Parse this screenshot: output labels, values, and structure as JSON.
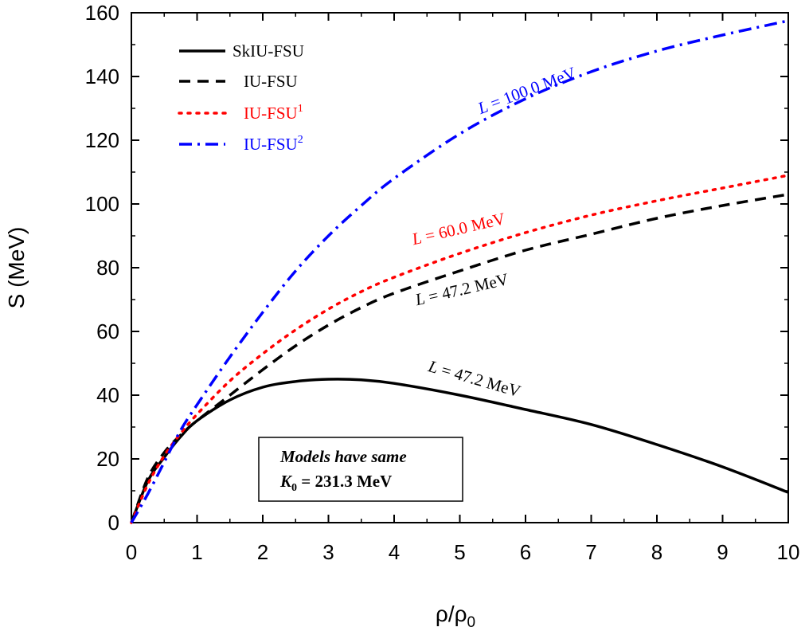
{
  "chart_data": {
    "type": "line",
    "xlabel": "ρ/ρ",
    "xlabel_sub": "0",
    "ylabel": "S (MeV)",
    "xlim": [
      0,
      10
    ],
    "ylim": [
      0,
      160
    ],
    "xticks": [
      0,
      1,
      2,
      3,
      4,
      5,
      6,
      7,
      8,
      9,
      10
    ],
    "yticks": [
      0,
      20,
      40,
      60,
      80,
      100,
      120,
      140,
      160
    ],
    "grid": false,
    "legend_position": "top-left",
    "series": [
      {
        "name": "SkIU-FSU",
        "name_sup": "",
        "style": "solid",
        "color": "#000000",
        "x": [
          0,
          0.25,
          0.5,
          0.75,
          1,
          1.5,
          2,
          2.5,
          3,
          3.5,
          4,
          5,
          6,
          7,
          8,
          9,
          10
        ],
        "y": [
          0,
          13,
          20.5,
          27,
          32,
          38.5,
          42.5,
          44.3,
          45,
          44.8,
          43.7,
          40,
          35.5,
          30.8,
          24.5,
          17.5,
          9.5
        ]
      },
      {
        "name": "IU-FSU",
        "name_sup": "",
        "style": "dashed",
        "color": "#000000",
        "x": [
          0,
          0.25,
          0.5,
          0.75,
          1,
          1.5,
          2,
          2.5,
          3,
          3.5,
          4,
          5,
          6,
          7,
          8,
          9,
          10
        ],
        "y": [
          0,
          14,
          22,
          27.5,
          32,
          40,
          48,
          55.5,
          62,
          67.5,
          72,
          79,
          85.5,
          90.5,
          95.5,
          99.5,
          103
        ]
      },
      {
        "name": "IU-FSU",
        "name_sup": "1",
        "style": "dotted",
        "color": "#ff0000",
        "x": [
          0,
          0.25,
          0.5,
          0.75,
          1,
          1.5,
          2,
          2.5,
          3,
          3.5,
          4,
          5,
          6,
          7,
          8,
          9,
          10
        ],
        "y": [
          0,
          12,
          21,
          28,
          34,
          44.5,
          53,
          60.5,
          67,
          72.5,
          77,
          84.5,
          91,
          96.5,
          101,
          105,
          109
        ]
      },
      {
        "name": "IU-FSU",
        "name_sup": "2",
        "style": "dashdot",
        "color": "#0000ff",
        "x": [
          0,
          0.25,
          0.5,
          0.75,
          1,
          1.5,
          2,
          2.5,
          3,
          3.5,
          4,
          5,
          6,
          7,
          8,
          9,
          10
        ],
        "y": [
          0,
          9,
          19,
          29,
          37,
          52,
          66,
          79,
          90,
          99.5,
          108,
          122,
          133,
          141.5,
          148,
          153,
          157.5
        ]
      }
    ],
    "annotations": [
      {
        "text": "L",
        "text2": " = 100.0 MeV",
        "color": "#0000ff",
        "x": 6.05,
        "y": 134,
        "angle": -21
      },
      {
        "text": "L",
        "text2": " = 60.0 MeV",
        "color": "#ff0000",
        "x": 5.0,
        "y": 90.5,
        "angle": -13
      },
      {
        "text": "L",
        "text2": " = 47.2 MeV",
        "color": "#000000",
        "x": 5.05,
        "y": 71.5,
        "angle": -13
      },
      {
        "text": "L",
        "text2": " = 47.2 MeV",
        "color": "#000000",
        "x": 5.2,
        "y": 43.5,
        "angle": 16
      }
    ],
    "note_box": {
      "line1": "Models have same",
      "line2_main": "K",
      "line2_sub": "0",
      "line2_rest": " = 231.3 MeV"
    }
  }
}
